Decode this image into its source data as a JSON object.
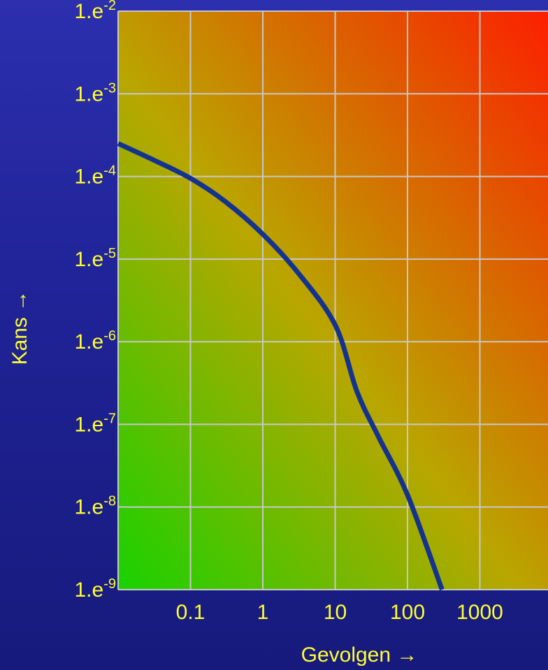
{
  "chart_data": {
    "type": "line",
    "title": "",
    "xlabel": "Gevolgen →",
    "ylabel": "Kans →",
    "x_scale": "log",
    "y_scale": "log",
    "xlim": [
      0.01,
      100000
    ],
    "ylim": [
      1e-09,
      0.01
    ],
    "grid": true,
    "x_ticks": [
      {
        "value": 0.1,
        "label": "0.1"
      },
      {
        "value": 1,
        "label": "1"
      },
      {
        "value": 10,
        "label": "10"
      },
      {
        "value": 100,
        "label": "100"
      },
      {
        "value": 1000,
        "label": "1000"
      }
    ],
    "y_ticks": [
      {
        "value": 0.01,
        "base": "1.e",
        "exp": "-2"
      },
      {
        "value": 0.001,
        "base": "1.e",
        "exp": "-3"
      },
      {
        "value": 0.0001,
        "base": "1.e",
        "exp": "-4"
      },
      {
        "value": 1e-05,
        "base": "1.e",
        "exp": "-5"
      },
      {
        "value": 1e-06,
        "base": "1.e",
        "exp": "-6"
      },
      {
        "value": 1e-07,
        "base": "1.e",
        "exp": "-7"
      },
      {
        "value": 1e-08,
        "base": "1.e",
        "exp": "-8"
      },
      {
        "value": 1e-09,
        "base": "1.e",
        "exp": "-9"
      }
    ],
    "series": [
      {
        "x": [
          0.01,
          0.03,
          0.1,
          0.3,
          1,
          3,
          10,
          20,
          40,
          100,
          300
        ],
        "y": [
          0.00025,
          0.00016,
          9.5e-05,
          5e-05,
          2e-05,
          7e-06,
          1.6e-06,
          2.5e-07,
          7e-08,
          1.4e-08,
          1e-09
        ]
      }
    ],
    "colors": {
      "line": "#13338f",
      "grid": "#c7c7c7",
      "text": "#ffff33",
      "gradient_green": "#18d200",
      "gradient_red": "#ff1a00"
    }
  }
}
